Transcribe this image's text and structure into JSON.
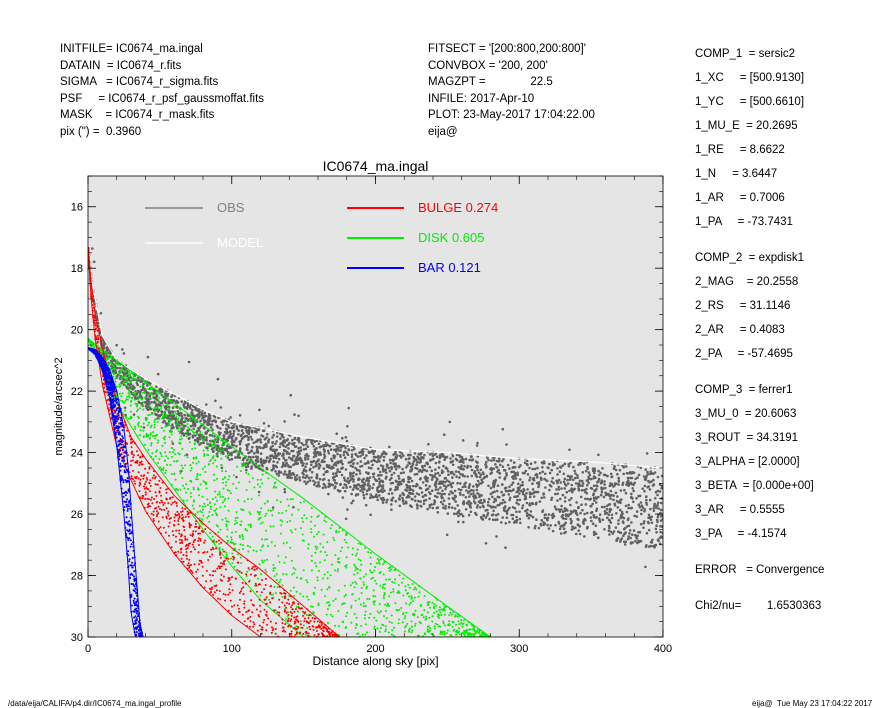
{
  "header": {
    "left": [
      "INITFILE= IC0674_ma.ingal",
      "DATAIN  = IC0674_r.fits",
      "SIGMA   = IC0674_r_sigma.fits",
      "PSF     = IC0674_r_psf_gaussmoffat.fits",
      "MASK    = IC0674_r_mask.fits",
      "pix (\") =  0.3960"
    ],
    "middle": [
      "FITSECT = '[200:800,200:800]'",
      "CONVBOX = '200, 200'",
      "MAGZPT =              22.5",
      "INFILE: 2017-Apr-10",
      "PLOT: 23-May-2017 17:04:22.00",
      "eija@"
    ]
  },
  "params": [
    {
      "text": "COMP_1  = sersic2",
      "gap": false
    },
    {
      "text": "1_XC     = [500.9130]",
      "gap": false
    },
    {
      "text": "1_YC     = [500.6610]",
      "gap": false
    },
    {
      "text": "1_MU_E  = 20.2695",
      "gap": false
    },
    {
      "text": "1_RE     = 8.6622",
      "gap": false
    },
    {
      "text": "1_N     = 3.6447",
      "gap": false
    },
    {
      "text": "1_AR     = 0.7006",
      "gap": false
    },
    {
      "text": "1_PA     = -73.7431",
      "gap": false
    },
    {
      "text": "COMP_2  = expdisk1",
      "gap": true
    },
    {
      "text": "2_MAG    = 20.2558",
      "gap": false
    },
    {
      "text": "2_RS     = 31.1146",
      "gap": false
    },
    {
      "text": "2_AR     = 0.4083",
      "gap": false
    },
    {
      "text": "2_PA     = -57.4695",
      "gap": false
    },
    {
      "text": "COMP_3  = ferrer1",
      "gap": true
    },
    {
      "text": "3_MU_0  = 20.6063",
      "gap": false
    },
    {
      "text": "3_ROUT  = 34.3191",
      "gap": false
    },
    {
      "text": "3_ALPHA = [2.0000]",
      "gap": false
    },
    {
      "text": "3_BETA  = [0.000e+00]",
      "gap": false
    },
    {
      "text": "3_AR     = 0.5555",
      "gap": false
    },
    {
      "text": "3_PA     = -4.1574",
      "gap": false
    },
    {
      "text": "ERROR   = Convergence",
      "gap": true
    },
    {
      "text": "Chi2/nu=        1.6530363",
      "gap": true
    }
  ],
  "footer": {
    "left": "/data/eija/CALIFA/p4.dir/IC0674_ma.ingal_profile",
    "right": "eija@  Tue May 23 17:04:22 2017"
  },
  "colors": {
    "plot_bg": "#e5e5e5",
    "obs": "#606060",
    "model": "#ffffff",
    "bulge": "#ff0000",
    "disk": "#00ee00",
    "bar": "#0000ff"
  },
  "chart_data": {
    "type": "scatter",
    "title": "IC0674_ma.ingal",
    "xlabel": "Distance along sky [pix]",
    "ylabel": "magnitude/arcsec^2",
    "xlim": [
      0,
      400
    ],
    "ylim": [
      30,
      15
    ],
    "y_inverted": true,
    "xticks": [
      0,
      100,
      200,
      300,
      400
    ],
    "yticks": [
      16,
      18,
      20,
      22,
      24,
      26,
      28,
      30
    ],
    "legend": [
      {
        "name": "OBS",
        "color": "#808080"
      },
      {
        "name": "MODEL",
        "color": "#ffffff"
      },
      {
        "name": "BULGE  0.274",
        "color": "#ff0000"
      },
      {
        "name": "DISK  0.605",
        "color": "#00ee00"
      },
      {
        "name": "BAR  0.121",
        "color": "#0000ff"
      }
    ],
    "series": [
      {
        "name": "OBS",
        "x": [
          0,
          3,
          10,
          20,
          40,
          60,
          80,
          100,
          150,
          200,
          250,
          300,
          350,
          400
        ],
        "y_min": [
          17.2,
          18.5,
          20.2,
          21.0,
          21.6,
          22.1,
          22.6,
          23.0,
          23.5,
          23.9,
          24.0,
          24.2,
          24.3,
          24.5
        ],
        "y_max": [
          17.3,
          18.8,
          20.7,
          21.6,
          22.6,
          23.3,
          23.8,
          24.3,
          25.0,
          25.6,
          26.0,
          26.4,
          26.8,
          27.2
        ]
      },
      {
        "name": "BULGE",
        "x": [
          0,
          2,
          5,
          10,
          15,
          20,
          30,
          40,
          60,
          80,
          100,
          120,
          140,
          160,
          175
        ],
        "y_min": [
          17.3,
          18.4,
          19.5,
          20.6,
          21.5,
          22.3,
          23.5,
          24.2,
          25.4,
          26.3,
          27.1,
          27.8,
          28.6,
          29.4,
          30.0
        ],
        "y_max": [
          17.3,
          18.9,
          20.3,
          21.8,
          22.8,
          23.8,
          24.9,
          25.9,
          27.3,
          28.4,
          29.3,
          30.0,
          30.0,
          30.0,
          30.0
        ]
      },
      {
        "name": "DISK",
        "x": [
          0,
          20,
          40,
          60,
          80,
          100,
          120,
          150,
          200,
          250,
          280
        ],
        "y_min": [
          20.3,
          21.0,
          21.7,
          22.4,
          23.1,
          23.8,
          24.5,
          25.5,
          27.3,
          29.0,
          30.0
        ],
        "y_max": [
          20.3,
          22.4,
          23.9,
          25.2,
          26.5,
          27.7,
          28.8,
          30.0,
          30.0,
          30.0,
          30.0
        ]
      },
      {
        "name": "BAR",
        "x": [
          0,
          5,
          10,
          15,
          20,
          25,
          28,
          30,
          33,
          36,
          38
        ],
        "y_min": [
          20.6,
          20.65,
          20.9,
          21.3,
          22.0,
          23.2,
          24.5,
          25.8,
          27.7,
          29.5,
          30.0
        ],
        "y_max": [
          20.6,
          20.8,
          21.3,
          22.2,
          23.8,
          26.0,
          27.8,
          29.2,
          30.0,
          30.0,
          30.0
        ]
      }
    ]
  }
}
